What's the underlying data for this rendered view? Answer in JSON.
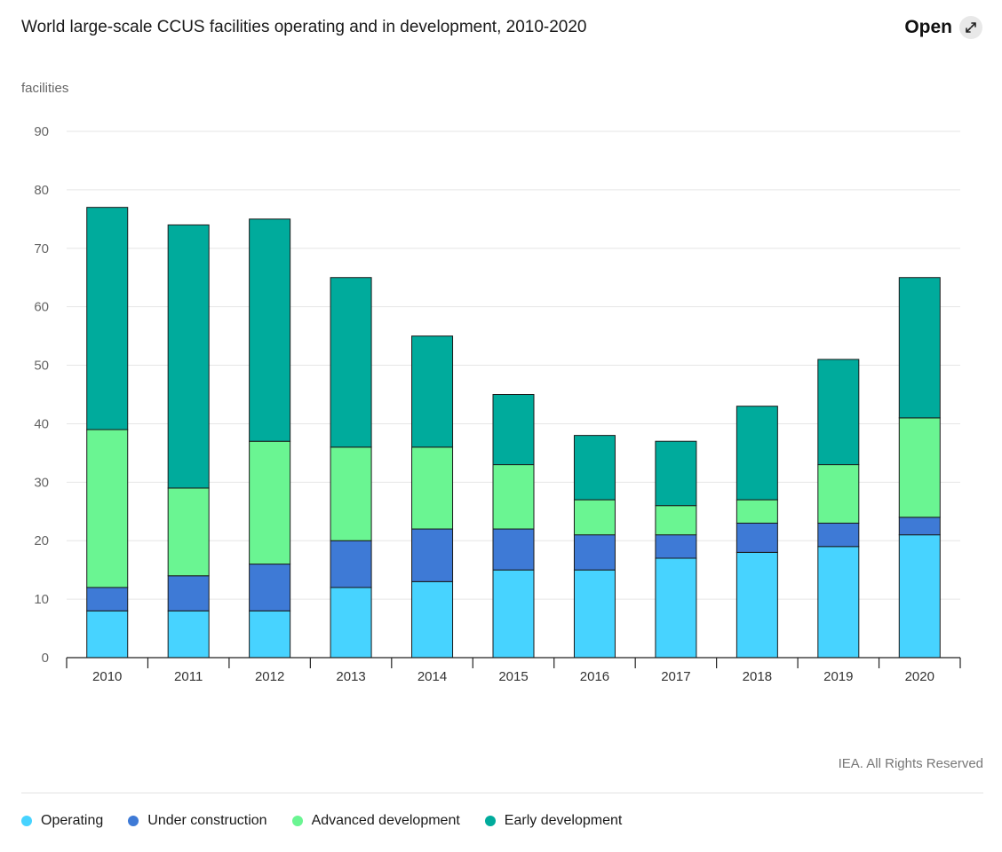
{
  "header": {
    "title": "World large-scale CCUS facilities operating and in development, 2010-2020",
    "open_label": "Open",
    "open_icon": "expand-arrows-icon"
  },
  "footer": {
    "credit": "IEA. All Rights Reserved"
  },
  "chart_data": {
    "type": "bar",
    "stacked": true,
    "title": "World large-scale CCUS facilities operating and in development, 2010-2020",
    "ylabel": "facilities",
    "xlabel": "",
    "ylim": [
      0,
      90
    ],
    "yticks": [
      0,
      10,
      20,
      30,
      40,
      50,
      60,
      70,
      80,
      90
    ],
    "grid": true,
    "legend_position": "bottom",
    "categories": [
      "2010",
      "2011",
      "2012",
      "2013",
      "2014",
      "2015",
      "2016",
      "2017",
      "2018",
      "2019",
      "2020"
    ],
    "series": [
      {
        "name": "Operating",
        "color": "#47d3ff",
        "values": [
          8,
          8,
          8,
          12,
          13,
          15,
          15,
          17,
          18,
          19,
          21
        ]
      },
      {
        "name": "Under construction",
        "color": "#3e7ad6",
        "values": [
          4,
          6,
          8,
          8,
          9,
          7,
          6,
          4,
          5,
          4,
          3
        ]
      },
      {
        "name": "Advanced development",
        "color": "#6af592",
        "values": [
          27,
          15,
          21,
          16,
          14,
          11,
          6,
          5,
          4,
          10,
          17
        ]
      },
      {
        "name": "Early development",
        "color": "#00ab9c",
        "values": [
          38,
          45,
          38,
          29,
          19,
          12,
          11,
          11,
          16,
          18,
          24
        ]
      }
    ]
  }
}
